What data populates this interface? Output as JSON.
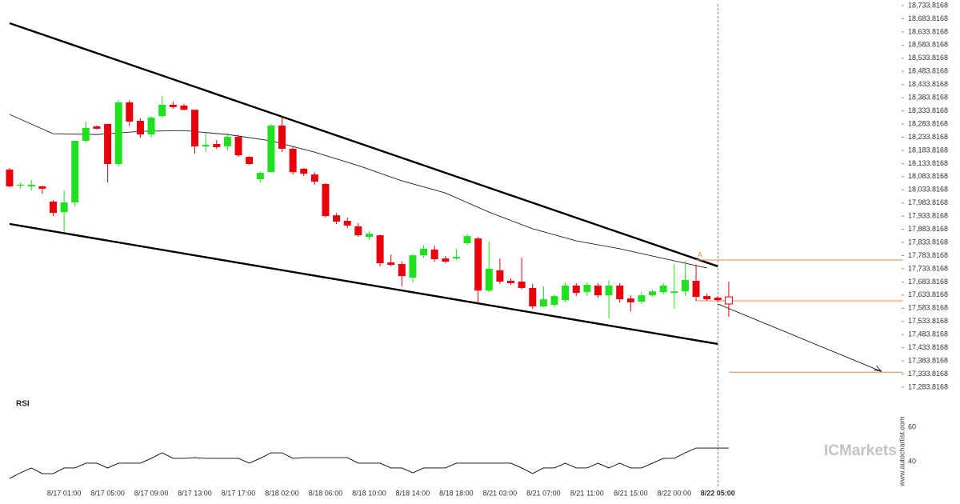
{
  "chart_data": [
    {
      "type": "candlestick",
      "categories": [
        null,
        null,
        null,
        null,
        null,
        "8/17 01:00",
        null,
        null,
        null,
        "8/17 05:00",
        null,
        null,
        null,
        "8/17 09:00",
        null,
        null,
        null,
        "8/17 13:00",
        null,
        null,
        null,
        "8/17 17:00",
        null,
        null,
        null,
        "8/18 02:00",
        null,
        null,
        null,
        "8/18 06:00",
        null,
        null,
        null,
        "8/18 10:00",
        null,
        null,
        null,
        "8/18 14:00",
        null,
        null,
        null,
        "8/18 18:00",
        null,
        null,
        null,
        "8/21 03:00",
        null,
        null,
        null,
        "8/21 07:00",
        null,
        null,
        null,
        "8/21 11:00",
        null,
        null,
        null,
        "8/21 15:00",
        null,
        null,
        null,
        "8/22 00:00",
        null,
        null,
        null,
        "8/22 05:00",
        null
      ],
      "open": [
        18111,
        18050,
        18047,
        18047,
        17989,
        17949,
        17986,
        18220,
        18275,
        18284,
        18132,
        18366,
        18296,
        18244,
        18314,
        18357,
        18354,
        18338,
        18199,
        18208,
        18199,
        18235,
        18159,
        18074,
        18101,
        18278,
        18190,
        18114,
        18092,
        18056,
        17937,
        17916,
        17895,
        17855,
        17861,
        17758,
        17752,
        17700,
        17785,
        17807,
        17773,
        17773,
        17831,
        17849,
        17651,
        17728,
        17688,
        17685,
        17661,
        17591,
        17597,
        17615,
        17670,
        17645,
        17670,
        17633,
        17670,
        17621,
        17609,
        17633,
        17645,
        17642,
        17648,
        17688,
        17630,
        17624,
        17627
      ],
      "high": [
        18117,
        18062,
        18071,
        18050,
        17995,
        18031,
        18220,
        18293,
        18278,
        18284,
        18375,
        18375,
        18305,
        18314,
        18390,
        18369,
        18360,
        18338,
        18253,
        18223,
        18250,
        18244,
        18162,
        18104,
        18284,
        18314,
        18196,
        18117,
        18101,
        18059,
        17946,
        17928,
        17907,
        17876,
        17864,
        17788,
        17761,
        17791,
        17822,
        17822,
        17782,
        17810,
        17867,
        17855,
        17837,
        17773,
        17697,
        17776,
        17676,
        17667,
        17636,
        17682,
        17679,
        17682,
        17679,
        17691,
        17679,
        17633,
        17645,
        17655,
        17679,
        17752,
        17764,
        17749,
        17639,
        17630,
        17685
      ],
      "low": [
        18044,
        18038,
        18031,
        18019,
        17934,
        17873,
        17971,
        18214,
        18263,
        18062,
        18123,
        18275,
        18232,
        18232,
        18308,
        18342,
        18335,
        18171,
        18177,
        18190,
        18183,
        18159,
        18129,
        18062,
        18101,
        18177,
        18092,
        18086,
        18053,
        17928,
        17904,
        17889,
        17855,
        17843,
        17743,
        17743,
        17667,
        17682,
        17776,
        17761,
        17755,
        17767,
        17825,
        17606,
        17645,
        17676,
        17673,
        17655,
        17582,
        17588,
        17588,
        17606,
        17630,
        17630,
        17624,
        17545,
        17606,
        17572,
        17600,
        17627,
        17636,
        17582,
        17630,
        17612,
        17612,
        17606,
        17551
      ],
      "close": [
        18047,
        18053,
        18053,
        18038,
        17946,
        17986,
        18220,
        18269,
        18266,
        18132,
        18366,
        18293,
        18244,
        18308,
        18357,
        18348,
        18338,
        18199,
        18205,
        18196,
        18235,
        18165,
        18132,
        18098,
        18278,
        18190,
        18101,
        18095,
        18065,
        17934,
        17913,
        17898,
        17861,
        17867,
        17755,
        17749,
        17706,
        17785,
        17810,
        17770,
        17761,
        17779,
        17858,
        17651,
        17734,
        17685,
        17679,
        17661,
        17591,
        17618,
        17630,
        17670,
        17642,
        17673,
        17633,
        17670,
        17618,
        17606,
        17633,
        17648,
        17670,
        17648,
        17691,
        17627,
        17618,
        17615,
        17600
      ],
      "up_color": "#20e020",
      "down_color": "#e8000b",
      "ma": {
        "x": [
          0,
          4,
          8,
          12,
          16,
          20,
          24,
          28,
          32,
          36,
          40,
          44,
          48,
          52,
          56,
          60,
          64
        ],
        "values": [
          18320,
          18247,
          18244,
          18256,
          18259,
          18244,
          18220,
          18177,
          18126,
          18068,
          18022,
          17949,
          17886,
          17840,
          17810,
          17773,
          17737
        ],
        "color": "#222222"
      },
      "trendlines": [
        {
          "x": [
            0,
            65
          ],
          "values": [
            18667,
            17743
          ]
        },
        {
          "x": [
            0,
            65
          ],
          "values": [
            17904,
            17448
          ]
        }
      ],
      "forecast": {
        "x": [
          65,
          80
        ],
        "values": [
          17600,
          17344
        ]
      },
      "levels": [
        {
          "x": [
            63,
            82
          ],
          "values": [
            17767,
            17767
          ]
        },
        {
          "x": [
            63,
            82
          ],
          "values": [
            17612,
            17612
          ]
        },
        {
          "x": [
            66,
            82
          ],
          "values": [
            17341,
            17341
          ]
        }
      ],
      "level_color": "#f08a4b",
      "annotation": "A",
      "marker_x": 65,
      "ylim": [
        17283.8168,
        18733.8168
      ],
      "yticks": [
        {
          "value": 18733.8168,
          "label": "18,733.8168"
        },
        {
          "value": 18683.8168,
          "label": "18,683.8168"
        },
        {
          "value": 18633.8168,
          "label": "18,633.8168"
        },
        {
          "value": 18583.8168,
          "label": "18,583.8168"
        },
        {
          "value": 18533.8168,
          "label": "18,533.8168"
        },
        {
          "value": 18483.8168,
          "label": "18,483.8168"
        },
        {
          "value": 18433.8168,
          "label": "18,433.8168"
        },
        {
          "value": 18383.8168,
          "label": "18,383.8168"
        },
        {
          "value": 18333.8168,
          "label": "18,333.8168"
        },
        {
          "value": 18283.8168,
          "label": "18,283.8168"
        },
        {
          "value": 18233.8168,
          "label": "18,233.8168"
        },
        {
          "value": 18183.8168,
          "label": "18,183.8168"
        },
        {
          "value": 18133.8168,
          "label": "18,133.8168"
        },
        {
          "value": 18083.8168,
          "label": "18,083.8168"
        },
        {
          "value": 18033.8168,
          "label": "18,033.8168"
        },
        {
          "value": 17983.8168,
          "label": "17,983.8168"
        },
        {
          "value": 17933.8168,
          "label": "17,933.8168"
        },
        {
          "value": 17883.8168,
          "label": "17,883.8168"
        },
        {
          "value": 17833.8168,
          "label": "17,833.8168"
        },
        {
          "value": 17783.8168,
          "label": "17,783.8168"
        },
        {
          "value": 17733.8168,
          "label": "17,733.8168"
        },
        {
          "value": 17683.8168,
          "label": "17,683.8168"
        },
        {
          "value": 17633.8168,
          "label": "17,633.8168"
        },
        {
          "value": 17583.8168,
          "label": "17,583.8168"
        },
        {
          "value": 17533.8168,
          "label": "17,533.8168"
        },
        {
          "value": 17483.8168,
          "label": "17,483.8168"
        },
        {
          "value": 17433.8168,
          "label": "17,433.8168"
        },
        {
          "value": 17383.8168,
          "label": "17,383.8168"
        },
        {
          "value": 17333.8168,
          "label": "17,333.8168"
        },
        {
          "value": 17283.8168,
          "label": "17,283.8168"
        }
      ]
    },
    {
      "type": "line",
      "title": "RSI",
      "color": "#000000",
      "values": [
        30.2,
        33.5,
        36.3,
        33,
        33,
        36.3,
        36.3,
        39.1,
        39.1,
        36.3,
        39.1,
        39.1,
        39.1,
        41.9,
        45.1,
        41.9,
        41.9,
        42.3,
        41.9,
        41.9,
        41.9,
        41.9,
        39.1,
        41.9,
        45.1,
        45.1,
        41.9,
        42.3,
        42.3,
        42.3,
        42.3,
        42.3,
        39.1,
        39.1,
        39.1,
        36.3,
        36.3,
        33.5,
        36.3,
        36.3,
        36.3,
        39.1,
        39.1,
        39.1,
        39.1,
        39.1,
        39.1,
        36.3,
        33,
        36.3,
        36.3,
        39.1,
        36.3,
        36.3,
        39.1,
        36.3,
        39.1,
        36.3,
        36.3,
        39.1,
        41.9,
        41.9,
        45.1,
        47.9,
        47.9,
        47.9,
        47.9
      ],
      "ylim": [
        29,
        76
      ],
      "yticks": [
        60,
        40
      ]
    }
  ],
  "watermark": "ICMarkets",
  "source": "www.autochartist.com"
}
